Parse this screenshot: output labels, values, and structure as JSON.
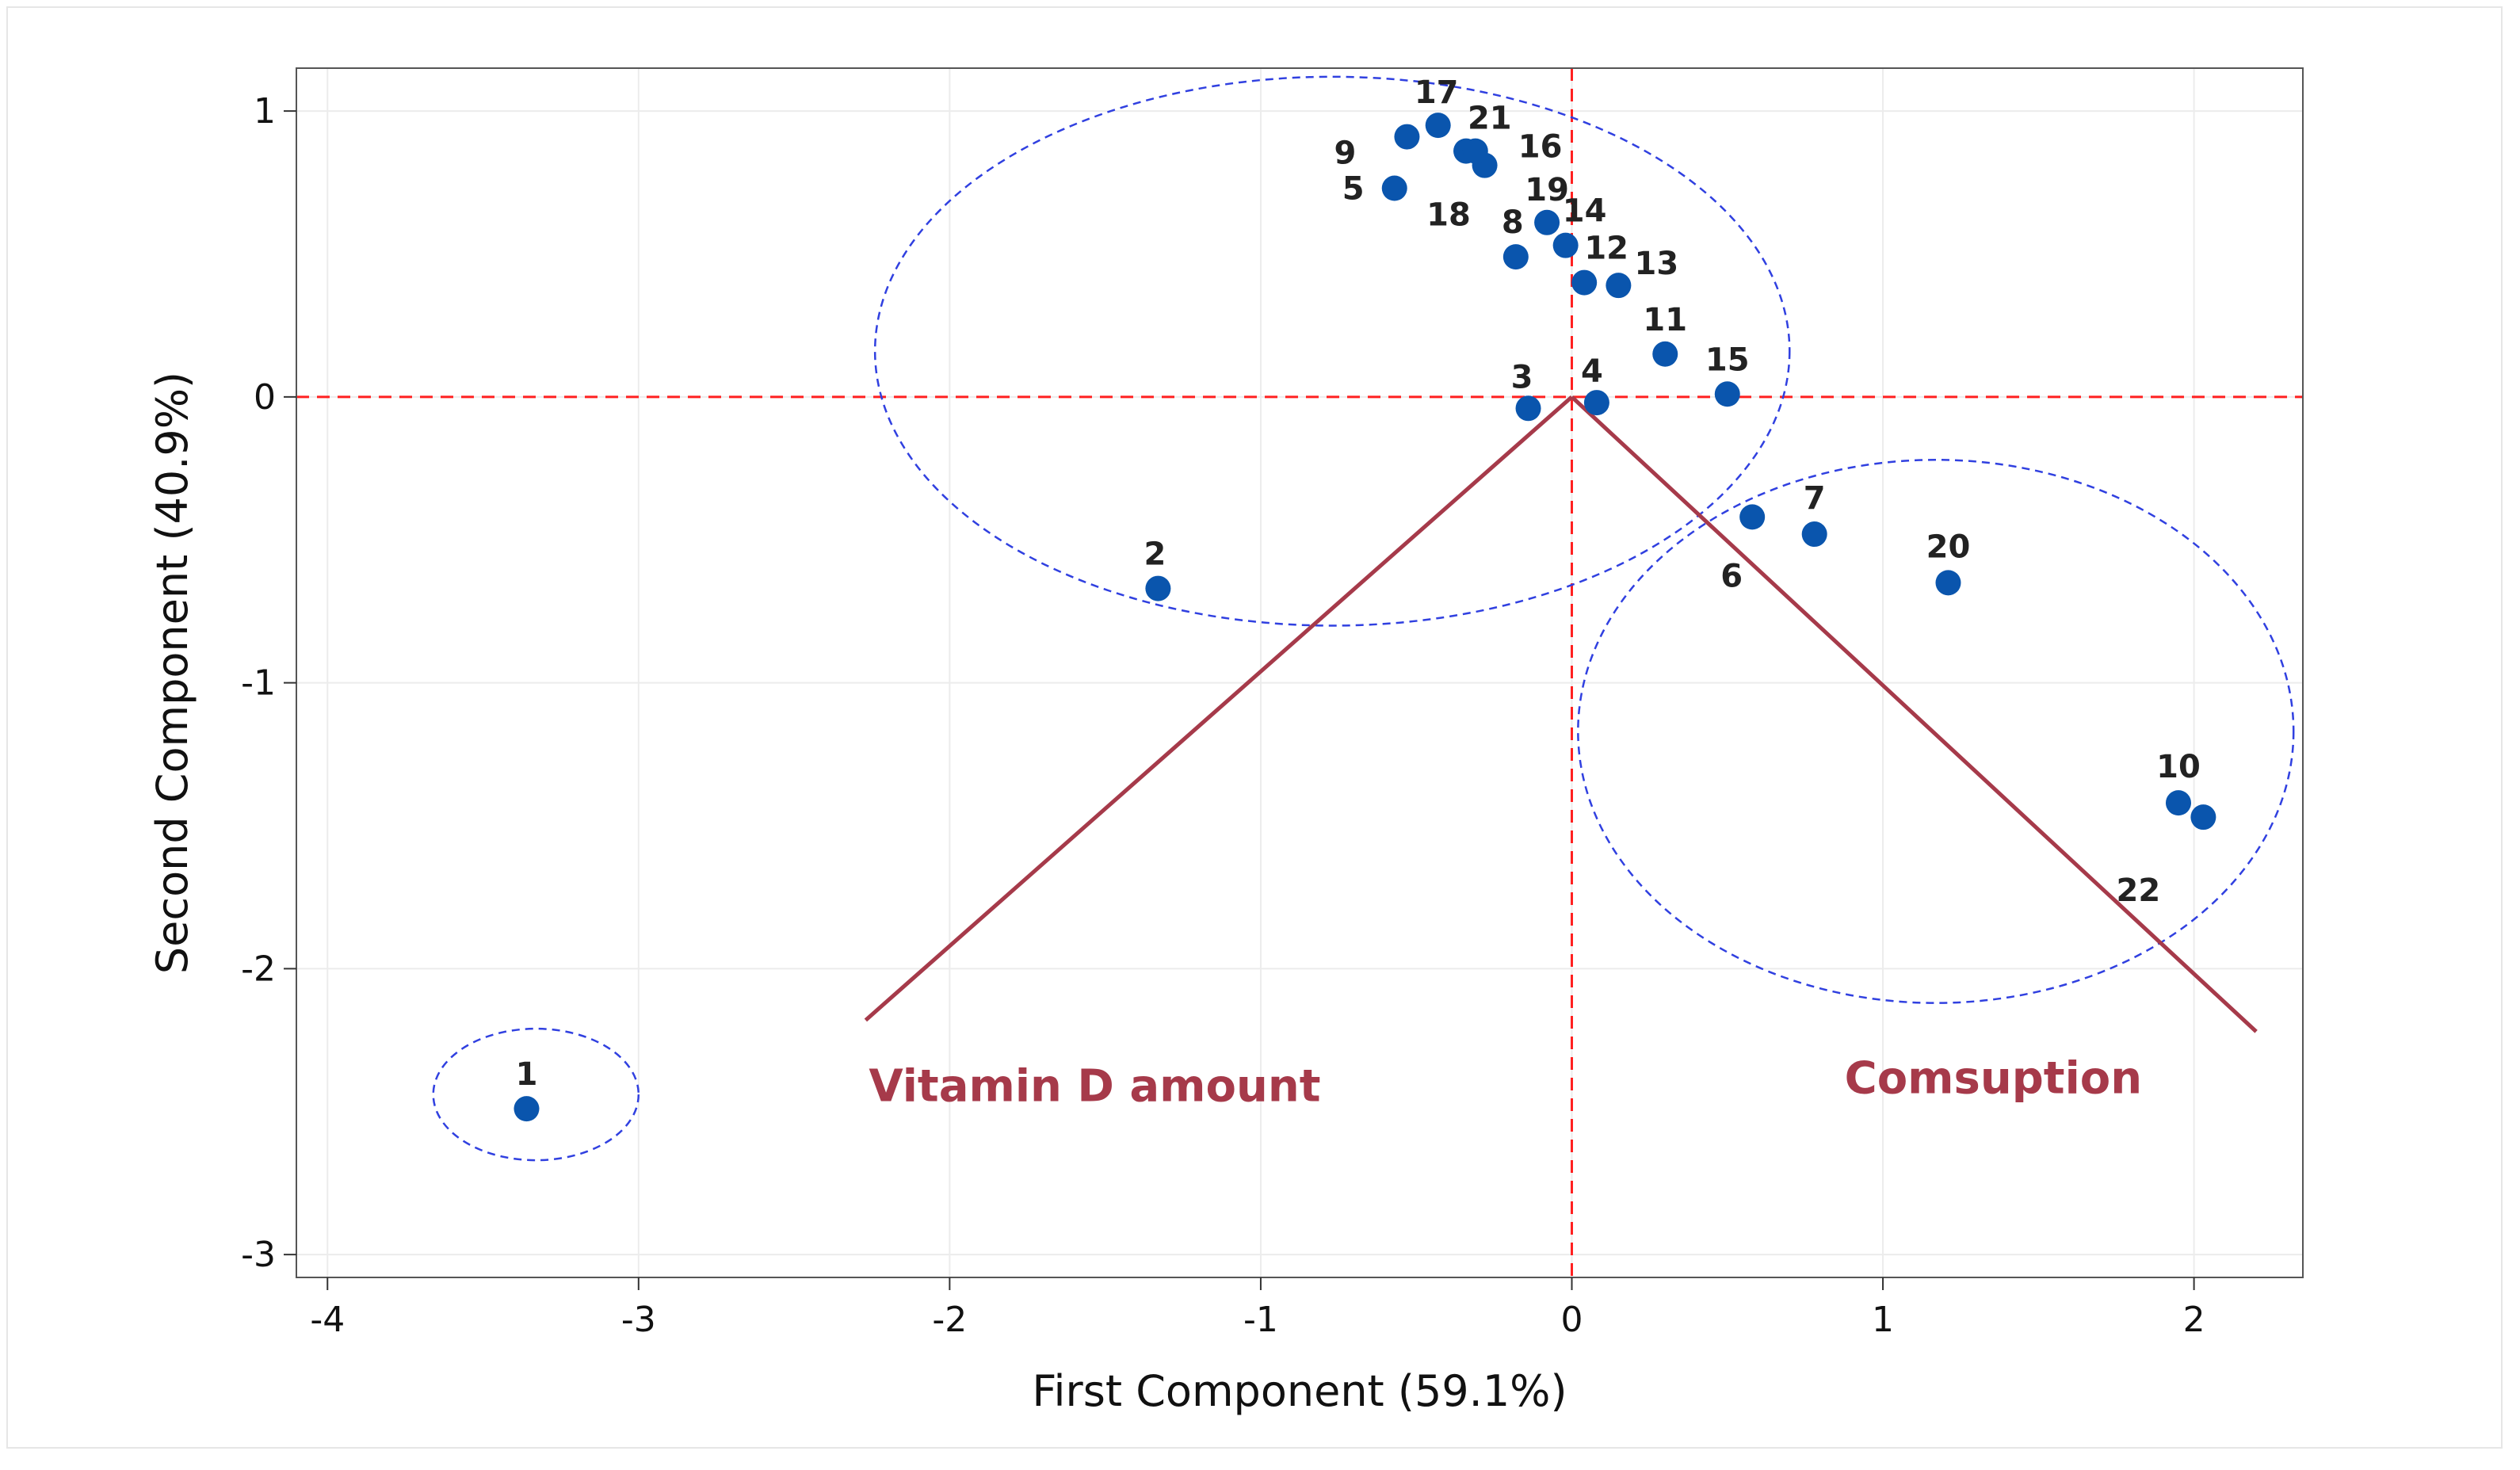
{
  "chart_data": {
    "type": "scatter",
    "title": "",
    "xlabel": "First Component (59.1%)",
    "ylabel": "Second Component (40.9%)",
    "xlim": [
      -4.1,
      2.35
    ],
    "ylim": [
      -3.08,
      1.15
    ],
    "xticks": [
      -4,
      -3,
      -2,
      -1,
      0,
      1,
      2
    ],
    "yticks": [
      -3,
      -2,
      -1,
      0,
      1
    ],
    "grid": true,
    "reference_lines": {
      "x": 0,
      "y": 0,
      "color": "#ff2020"
    },
    "points": [
      {
        "label": "1",
        "x": -3.36,
        "y": -2.49
      },
      {
        "label": "2",
        "x": -1.33,
        "y": -0.67
      },
      {
        "label": "3",
        "x": -0.14,
        "y": -0.04
      },
      {
        "label": "4",
        "x": 0.08,
        "y": -0.02
      },
      {
        "label": "5",
        "x": -0.57,
        "y": 0.73
      },
      {
        "label": "6",
        "x": 0.58,
        "y": -0.42
      },
      {
        "label": "7",
        "x": 0.78,
        "y": -0.48
      },
      {
        "label": "8",
        "x": -0.18,
        "y": 0.49
      },
      {
        "label": "9",
        "x": -0.53,
        "y": 0.91
      },
      {
        "label": "10",
        "x": 1.95,
        "y": -1.42
      },
      {
        "label": "11",
        "x": 0.3,
        "y": 0.15
      },
      {
        "label": "12",
        "x": 0.04,
        "y": 0.4
      },
      {
        "label": "13",
        "x": 0.15,
        "y": 0.39
      },
      {
        "label": "14",
        "x": -0.02,
        "y": 0.53
      },
      {
        "label": "15",
        "x": 0.5,
        "y": 0.01
      },
      {
        "label": "16",
        "x": -0.28,
        "y": 0.81
      },
      {
        "label": "17",
        "x": -0.43,
        "y": 0.95
      },
      {
        "label": "18",
        "x": -0.34,
        "y": 0.86
      },
      {
        "label": "19",
        "x": -0.08,
        "y": 0.61
      },
      {
        "label": "20",
        "x": 1.21,
        "y": -0.65
      },
      {
        "label": "21",
        "x": -0.31,
        "y": 0.86
      },
      {
        "label": "22",
        "x": 2.03,
        "y": -1.47
      }
    ],
    "vectors": [
      {
        "name": "Vitamin D amount",
        "x": -2.27,
        "y": -2.18,
        "color": "#a63a4a"
      },
      {
        "name": "Comsuption",
        "x": 2.2,
        "y": -2.22,
        "color": "#a63a4a"
      }
    ],
    "clusters": [
      {
        "cx": -0.77,
        "cy": 0.16,
        "rx": 1.47,
        "ry": 0.96
      },
      {
        "cx": 1.17,
        "cy": -1.17,
        "rx": 1.15,
        "ry": 0.95
      },
      {
        "cx": -3.33,
        "cy": -2.44,
        "rx": 0.33,
        "ry": 0.23
      }
    ],
    "colors": {
      "points": "#0a55ad",
      "clusters": "#3040e0",
      "vectors": "#a63a4a",
      "reference": "#ff2020"
    }
  }
}
